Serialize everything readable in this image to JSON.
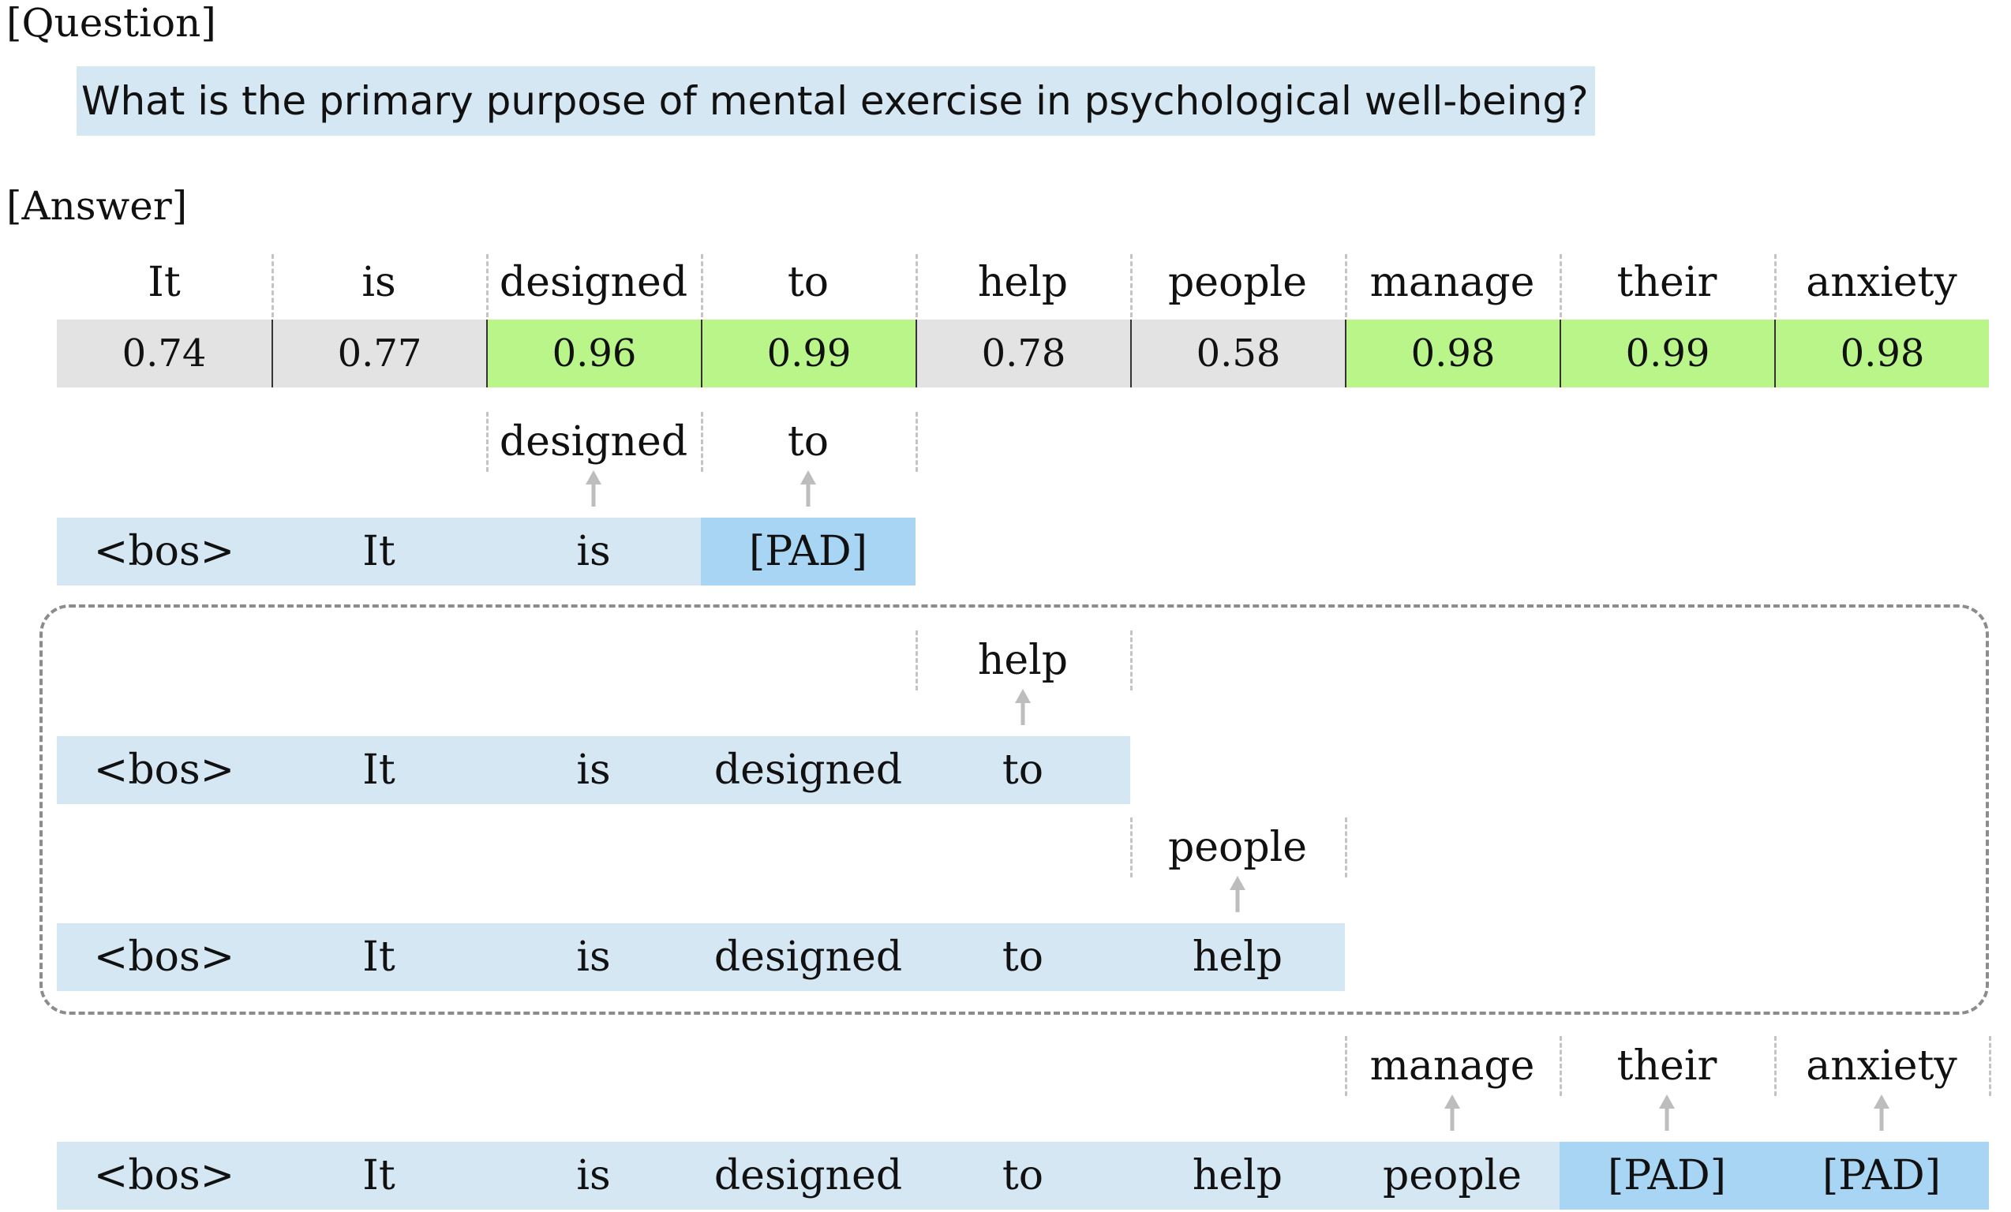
{
  "question_label": "[Question]",
  "question": "What is the primary purpose of mental exercise in psychological well-being?",
  "answer_label": "[Answer]",
  "answer_tokens": [
    "It",
    "is",
    "designed",
    "to",
    "help",
    "people",
    "manage",
    "their",
    "anxiety"
  ],
  "confidences": [
    "0.74",
    "0.77",
    "0.96",
    "0.99",
    "0.78",
    "0.58",
    "0.98",
    "0.99",
    "0.98"
  ],
  "confidence_levels": [
    "low",
    "low",
    "high",
    "high",
    "low",
    "low",
    "high",
    "high",
    "high"
  ],
  "steps": [
    {
      "inputs": [
        "<bos>",
        "It",
        "is",
        "[PAD]"
      ],
      "pad_flags": [
        false,
        false,
        false,
        true
      ],
      "predictions": [
        "designed",
        "to"
      ]
    },
    {
      "inputs": [
        "<bos>",
        "It",
        "is",
        "designed",
        "to"
      ],
      "pad_flags": [
        false,
        false,
        false,
        false,
        false
      ],
      "predictions": [
        "help"
      ]
    },
    {
      "inputs": [
        "<bos>",
        "It",
        "is",
        "designed",
        "to",
        "help"
      ],
      "pad_flags": [
        false,
        false,
        false,
        false,
        false,
        false
      ],
      "predictions": [
        "people"
      ]
    },
    {
      "inputs": [
        "<bos>",
        "It",
        "is",
        "designed",
        "to",
        "help",
        "people",
        "[PAD]",
        "[PAD]"
      ],
      "pad_flags": [
        false,
        false,
        false,
        false,
        false,
        false,
        false,
        true,
        true
      ],
      "predictions": [
        "manage",
        "their",
        "anxiety"
      ]
    }
  ],
  "colors": {
    "question_bg": "#d6e7f4",
    "token_bg": "#d6e7f4",
    "pad_bg": "#a9d5f4",
    "low_conf_bg": "#e3e3e3",
    "high_conf_bg": "#b9f589",
    "arrow": "#bdbdbd",
    "dashed": "#c4c4c4"
  }
}
